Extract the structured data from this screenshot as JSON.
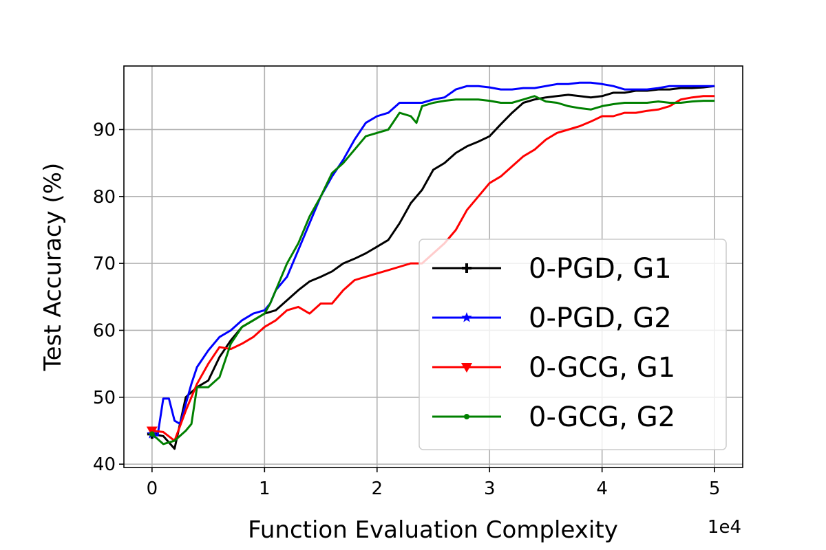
{
  "chart_data": {
    "type": "line",
    "xlabel": "Function Evaluation Complexity",
    "ylabel": "Test Accuracy (%)",
    "x_offset_label": "1e4",
    "xlim": [
      -0.25,
      5.25
    ],
    "ylim": [
      39.5,
      99.5
    ],
    "xticks": [
      0,
      1,
      2,
      3,
      4,
      5
    ],
    "xtick_labels": [
      "0",
      "1",
      "2",
      "3",
      "4",
      "5"
    ],
    "yticks": [
      40,
      50,
      60,
      70,
      80,
      90
    ],
    "ytick_labels": [
      "40",
      "50",
      "60",
      "70",
      "80",
      "90"
    ],
    "grid": true,
    "legend_position": "lower right",
    "series": [
      {
        "name": "0-PGD, G1",
        "color": "#000000",
        "marker": "plus",
        "points": [
          [
            0,
            44.5
          ],
          [
            0.1,
            44.2
          ],
          [
            0.2,
            42.3
          ],
          [
            0.3,
            50
          ],
          [
            0.4,
            51.5
          ],
          [
            0.5,
            52.5
          ],
          [
            0.6,
            56
          ],
          [
            0.7,
            58.5
          ],
          [
            0.8,
            60.5
          ],
          [
            0.9,
            61.5
          ],
          [
            1.0,
            62.5
          ],
          [
            1.1,
            63
          ],
          [
            1.2,
            64.5
          ],
          [
            1.3,
            66
          ],
          [
            1.4,
            67.3
          ],
          [
            1.5,
            68
          ],
          [
            1.6,
            68.8
          ],
          [
            1.7,
            70
          ],
          [
            1.8,
            70.7
          ],
          [
            1.9,
            71.5
          ],
          [
            2.0,
            72.5
          ],
          [
            2.1,
            73.5
          ],
          [
            2.2,
            76
          ],
          [
            2.3,
            79
          ],
          [
            2.4,
            81
          ],
          [
            2.5,
            84
          ],
          [
            2.6,
            85
          ],
          [
            2.7,
            86.5
          ],
          [
            2.8,
            87.5
          ],
          [
            2.9,
            88.2
          ],
          [
            3.0,
            89
          ],
          [
            3.1,
            90.8
          ],
          [
            3.2,
            92.5
          ],
          [
            3.3,
            94
          ],
          [
            3.4,
            94.5
          ],
          [
            3.5,
            94.8
          ],
          [
            3.6,
            95
          ],
          [
            3.7,
            95.2
          ],
          [
            3.8,
            95
          ],
          [
            3.9,
            94.8
          ],
          [
            4.0,
            95
          ],
          [
            4.1,
            95.5
          ],
          [
            4.2,
            95.5
          ],
          [
            4.3,
            95.8
          ],
          [
            4.4,
            95.8
          ],
          [
            4.5,
            96
          ],
          [
            4.6,
            96
          ],
          [
            4.7,
            96.2
          ],
          [
            4.8,
            96.2
          ],
          [
            4.9,
            96.3
          ],
          [
            5.0,
            96.5
          ]
        ]
      },
      {
        "name": "0-PGD, G2",
        "color": "#0000ff",
        "marker": "star",
        "points": [
          [
            0,
            44.5
          ],
          [
            0.05,
            44.3
          ],
          [
            0.1,
            49.8
          ],
          [
            0.15,
            49.8
          ],
          [
            0.2,
            46.5
          ],
          [
            0.25,
            46
          ],
          [
            0.3,
            49
          ],
          [
            0.35,
            52
          ],
          [
            0.4,
            54.5
          ],
          [
            0.5,
            57
          ],
          [
            0.6,
            59
          ],
          [
            0.7,
            60
          ],
          [
            0.8,
            61.5
          ],
          [
            0.9,
            62.5
          ],
          [
            1.0,
            63
          ],
          [
            1.05,
            64
          ],
          [
            1.1,
            66
          ],
          [
            1.2,
            68
          ],
          [
            1.3,
            72
          ],
          [
            1.4,
            76
          ],
          [
            1.5,
            80
          ],
          [
            1.6,
            83
          ],
          [
            1.7,
            85.5
          ],
          [
            1.8,
            88.5
          ],
          [
            1.9,
            91
          ],
          [
            2.0,
            92
          ],
          [
            2.1,
            92.5
          ],
          [
            2.2,
            94
          ],
          [
            2.3,
            94
          ],
          [
            2.4,
            94
          ],
          [
            2.5,
            94.5
          ],
          [
            2.6,
            94.8
          ],
          [
            2.7,
            96
          ],
          [
            2.8,
            96.5
          ],
          [
            2.9,
            96.5
          ],
          [
            3.0,
            96.3
          ],
          [
            3.1,
            96
          ],
          [
            3.2,
            96
          ],
          [
            3.3,
            96.2
          ],
          [
            3.4,
            96.2
          ],
          [
            3.5,
            96.5
          ],
          [
            3.6,
            96.8
          ],
          [
            3.7,
            96.8
          ],
          [
            3.8,
            97
          ],
          [
            3.9,
            97
          ],
          [
            4.0,
            96.8
          ],
          [
            4.1,
            96.5
          ],
          [
            4.2,
            96
          ],
          [
            4.3,
            96
          ],
          [
            4.4,
            96
          ],
          [
            4.5,
            96.2
          ],
          [
            4.6,
            96.5
          ],
          [
            4.7,
            96.5
          ],
          [
            4.8,
            96.5
          ],
          [
            4.9,
            96.5
          ],
          [
            5.0,
            96.5
          ]
        ]
      },
      {
        "name": "0-GCG, G1",
        "color": "#ff0000",
        "marker": "triangle-down",
        "points": [
          [
            0,
            45
          ],
          [
            0.1,
            44.8
          ],
          [
            0.2,
            43.5
          ],
          [
            0.3,
            48
          ],
          [
            0.4,
            52
          ],
          [
            0.5,
            55
          ],
          [
            0.6,
            57.5
          ],
          [
            0.7,
            57.2
          ],
          [
            0.8,
            58
          ],
          [
            0.9,
            59
          ],
          [
            1.0,
            60.5
          ],
          [
            1.1,
            61.5
          ],
          [
            1.2,
            63
          ],
          [
            1.3,
            63.5
          ],
          [
            1.4,
            62.5
          ],
          [
            1.5,
            64
          ],
          [
            1.6,
            64
          ],
          [
            1.7,
            66
          ],
          [
            1.8,
            67.5
          ],
          [
            1.9,
            68
          ],
          [
            2.0,
            68.5
          ],
          [
            2.1,
            69
          ],
          [
            2.2,
            69.5
          ],
          [
            2.3,
            70
          ],
          [
            2.4,
            70
          ],
          [
            2.5,
            71.5
          ],
          [
            2.6,
            73
          ],
          [
            2.7,
            75
          ],
          [
            2.8,
            78
          ],
          [
            2.9,
            80
          ],
          [
            3.0,
            82
          ],
          [
            3.1,
            83
          ],
          [
            3.2,
            84.5
          ],
          [
            3.3,
            86
          ],
          [
            3.4,
            87
          ],
          [
            3.5,
            88.5
          ],
          [
            3.6,
            89.5
          ],
          [
            3.7,
            90
          ],
          [
            3.8,
            90.5
          ],
          [
            3.9,
            91.2
          ],
          [
            4.0,
            92
          ],
          [
            4.1,
            92
          ],
          [
            4.2,
            92.5
          ],
          [
            4.3,
            92.5
          ],
          [
            4.4,
            92.8
          ],
          [
            4.5,
            93
          ],
          [
            4.6,
            93.5
          ],
          [
            4.7,
            94.5
          ],
          [
            4.8,
            94.8
          ],
          [
            4.9,
            95
          ],
          [
            5.0,
            95
          ]
        ]
      },
      {
        "name": "0-GCG, G2",
        "color": "#008000",
        "marker": "dot",
        "points": [
          [
            0,
            44.5
          ],
          [
            0.1,
            43
          ],
          [
            0.2,
            43.5
          ],
          [
            0.3,
            45
          ],
          [
            0.35,
            46
          ],
          [
            0.4,
            51.5
          ],
          [
            0.5,
            51.5
          ],
          [
            0.6,
            53
          ],
          [
            0.7,
            58
          ],
          [
            0.8,
            60.5
          ],
          [
            0.9,
            61.5
          ],
          [
            1.0,
            62.5
          ],
          [
            1.05,
            64
          ],
          [
            1.1,
            66
          ],
          [
            1.2,
            70
          ],
          [
            1.3,
            73
          ],
          [
            1.4,
            77
          ],
          [
            1.5,
            80
          ],
          [
            1.6,
            83.5
          ],
          [
            1.7,
            85
          ],
          [
            1.8,
            87
          ],
          [
            1.9,
            89
          ],
          [
            2.0,
            89.5
          ],
          [
            2.1,
            90
          ],
          [
            2.2,
            92.5
          ],
          [
            2.3,
            92
          ],
          [
            2.35,
            91
          ],
          [
            2.4,
            93.5
          ],
          [
            2.5,
            94
          ],
          [
            2.6,
            94.3
          ],
          [
            2.7,
            94.5
          ],
          [
            2.8,
            94.5
          ],
          [
            2.9,
            94.5
          ],
          [
            3.0,
            94.3
          ],
          [
            3.1,
            94
          ],
          [
            3.2,
            94
          ],
          [
            3.3,
            94.5
          ],
          [
            3.4,
            95
          ],
          [
            3.5,
            94.2
          ],
          [
            3.6,
            94
          ],
          [
            3.7,
            93.5
          ],
          [
            3.8,
            93.2
          ],
          [
            3.9,
            93
          ],
          [
            4.0,
            93.5
          ],
          [
            4.1,
            93.8
          ],
          [
            4.2,
            94
          ],
          [
            4.3,
            94
          ],
          [
            4.4,
            94
          ],
          [
            4.5,
            94.2
          ],
          [
            4.6,
            94
          ],
          [
            4.7,
            94
          ],
          [
            4.8,
            94.2
          ],
          [
            4.9,
            94.3
          ],
          [
            5.0,
            94.3
          ]
        ]
      }
    ]
  }
}
